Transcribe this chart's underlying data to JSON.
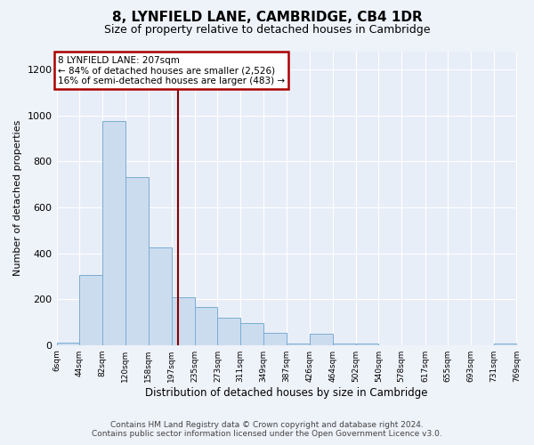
{
  "title": "8, LYNFIELD LANE, CAMBRIDGE, CB4 1DR",
  "subtitle": "Size of property relative to detached houses in Cambridge",
  "xlabel": "Distribution of detached houses by size in Cambridge",
  "ylabel": "Number of detached properties",
  "annotation_line1": "8 LYNFIELD LANE: 207sqm",
  "annotation_line2": "← 84% of detached houses are smaller (2,526)",
  "annotation_line3": "16% of semi-detached houses are larger (483) →",
  "property_size": 207,
  "bar_color": "#ccdcef",
  "bar_edge_color": "#7aadd4",
  "marker_color": "#8b0000",
  "bin_edges": [
    6,
    44,
    82,
    120,
    158,
    197,
    235,
    273,
    311,
    349,
    387,
    426,
    464,
    502,
    540,
    578,
    617,
    655,
    693,
    731,
    769
  ],
  "bar_heights": [
    10,
    307,
    975,
    730,
    425,
    210,
    165,
    120,
    95,
    55,
    5,
    50,
    5,
    5,
    0,
    0,
    0,
    0,
    0,
    5
  ],
  "ylim": [
    0,
    1280
  ],
  "yticks": [
    0,
    200,
    400,
    600,
    800,
    1000,
    1200
  ],
  "footer_line1": "Contains HM Land Registry data © Crown copyright and database right 2024.",
  "footer_line2": "Contains public sector information licensed under the Open Government Licence v3.0.",
  "fig_bg_color": "#eef2f9",
  "plot_bg_color": "#e8eef8"
}
